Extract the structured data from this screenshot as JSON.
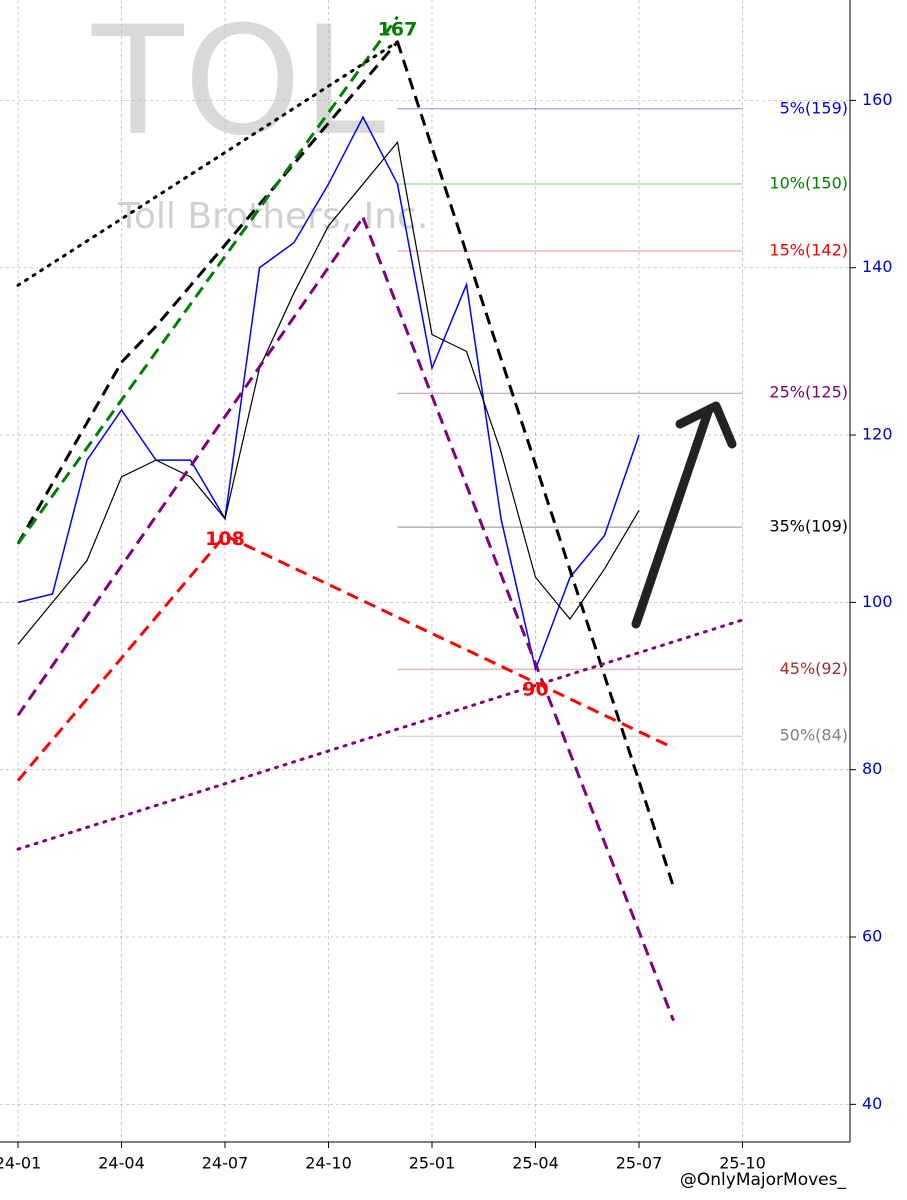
{
  "chart_data": {
    "type": "line",
    "title": "TOL",
    "subtitle": "Toll Brothers, Inc.",
    "footer": "@OnlyMajorMoves_",
    "xlim": [
      "23-12",
      "26-01"
    ],
    "ylim": [
      35.5,
      172
    ],
    "xticks": [
      "24-01",
      "24-04",
      "24-07",
      "24-10",
      "25-01",
      "25-04",
      "25-07",
      "25-10"
    ],
    "yticks": [
      40,
      60,
      80,
      100,
      120,
      140,
      160
    ],
    "grid": true,
    "series": [
      {
        "color": "#0000ff",
        "style": "solid",
        "width": 1.5,
        "x": [
          "24-01",
          "24-02",
          "24-03",
          "24-04",
          "24-05",
          "24-06",
          "24-07",
          "24-08",
          "24-09",
          "24-10",
          "24-11",
          "24-12",
          "25-01",
          "25-02",
          "25-03",
          "25-04",
          "25-05",
          "25-06",
          "25-07"
        ],
        "values": [
          100,
          101,
          117,
          123,
          117,
          117,
          110,
          140,
          143,
          150,
          158,
          150,
          128,
          138,
          110,
          92,
          103,
          108,
          120
        ]
      },
      {
        "color": "#000000",
        "style": "solid",
        "width": 1.2,
        "x": [
          "24-01",
          "24-02",
          "24-03",
          "24-04",
          "24-05",
          "24-06",
          "24-07",
          "24-08",
          "24-09",
          "24-10",
          "24-11",
          "24-12",
          "25-01",
          "25-02",
          "25-03",
          "25-04",
          "25-05",
          "25-06",
          "25-07"
        ],
        "values": [
          95,
          100,
          105,
          115,
          117,
          115,
          110,
          128,
          137,
          145,
          150,
          155,
          132,
          130,
          118,
          103,
          98,
          104,
          111
        ]
      },
      {
        "color": "#000000",
        "style": "dashed",
        "width": 3,
        "x": [
          "24-01",
          "24-04",
          "24-05",
          "24-12"
        ],
        "values": [
          107,
          128.7,
          133,
          167
        ]
      },
      {
        "color": "#000000",
        "style": "dashed",
        "width": 3,
        "x": [
          "24-12",
          "25-08"
        ],
        "values": [
          167,
          66
        ]
      },
      {
        "color": "#008000",
        "style": "dashed",
        "width": 3,
        "x": [
          "24-01",
          "24-12"
        ],
        "values": [
          107,
          170
        ]
      },
      {
        "color": "#800080",
        "style": "dashed",
        "width": 3,
        "x": [
          "24-01",
          "24-11"
        ],
        "values": [
          86.5,
          146
        ]
      },
      {
        "color": "#800080",
        "style": "dashed",
        "width": 3,
        "x": [
          "24-11",
          "25-08"
        ],
        "values": [
          146,
          50
        ]
      },
      {
        "color": "#ff0000",
        "style": "dashed",
        "width": 3,
        "x": [
          "24-01",
          "24-07",
          "25-08"
        ],
        "values": [
          78.7,
          108,
          82.6
        ]
      },
      {
        "color": "#000000",
        "style": "dotted",
        "width": 3,
        "x": [
          "24-01",
          "24-12"
        ],
        "values": [
          137.9,
          167
        ]
      },
      {
        "color": "#800080",
        "style": "dotted",
        "width": 3,
        "x": [
          "24-01",
          "25-10"
        ],
        "values": [
          70.5,
          97.9
        ]
      }
    ],
    "levels": [
      {
        "label": "5%(159)",
        "value": 159,
        "color": "#0000ff"
      },
      {
        "label": "10%(150)",
        "value": 150,
        "color": "#008000"
      },
      {
        "label": "15%(142)",
        "value": 142,
        "color": "#ff0000"
      },
      {
        "label": "25%(125)",
        "value": 125,
        "color": "#800080"
      },
      {
        "label": "35%(109)",
        "value": 109,
        "color": "#000000"
      },
      {
        "label": "45%(92)",
        "value": 92,
        "color": "#a52a2a"
      },
      {
        "label": "50%(84)",
        "value": 84,
        "color": "#808080"
      }
    ],
    "annotations": [
      {
        "label": "167",
        "x": "24-12",
        "y": 167,
        "color": "#008000"
      },
      {
        "label": "108",
        "x": "24-07",
        "y": 108,
        "color": "#ff0000"
      },
      {
        "label": "90",
        "x": "25-04",
        "y": 90,
        "color": "#ff0000"
      }
    ]
  }
}
